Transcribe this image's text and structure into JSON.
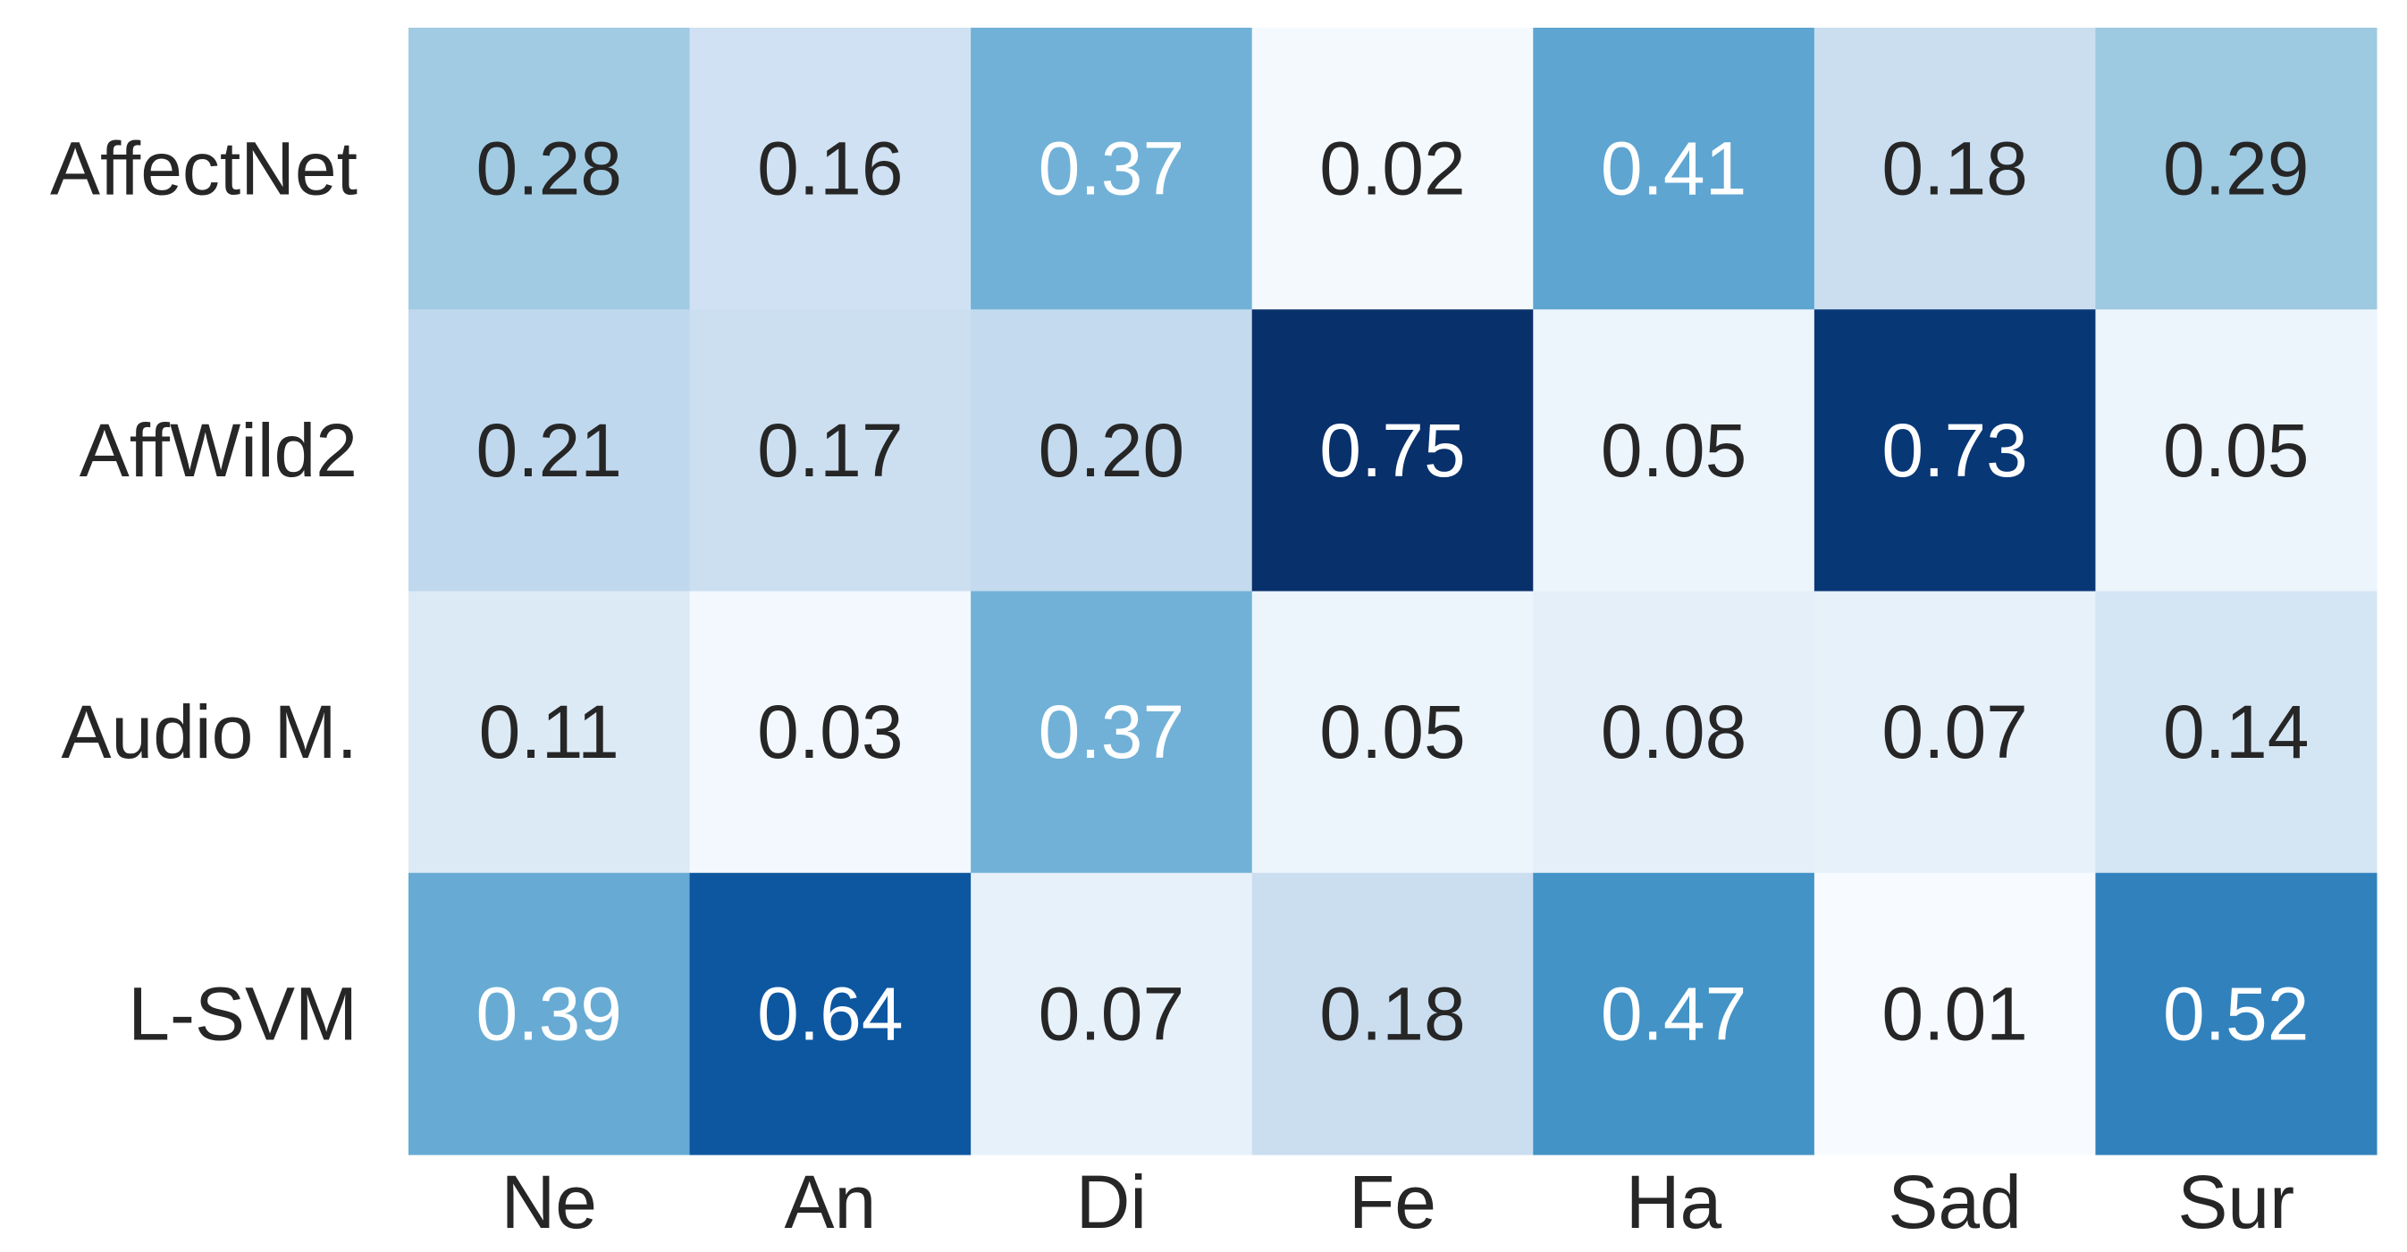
{
  "chart_data": {
    "type": "heatmap",
    "rows": [
      "AffectNet",
      "AffWild2",
      "Audio M.",
      "L-SVM"
    ],
    "columns": [
      "Ne",
      "An",
      "Di",
      "Fe",
      "Ha",
      "Sad",
      "Sur"
    ],
    "values": [
      [
        0.28,
        0.16,
        0.37,
        0.02,
        0.41,
        0.18,
        0.29
      ],
      [
        0.21,
        0.17,
        0.2,
        0.75,
        0.05,
        0.73,
        0.05
      ],
      [
        0.11,
        0.03,
        0.37,
        0.05,
        0.08,
        0.07,
        0.14
      ],
      [
        0.39,
        0.64,
        0.07,
        0.18,
        0.47,
        0.01,
        0.52
      ]
    ],
    "value_labels": [
      [
        "0.28",
        "0.16",
        "0.37",
        "0.02",
        "0.41",
        "0.18",
        "0.29"
      ],
      [
        "0.21",
        "0.17",
        "0.20",
        "0.75",
        "0.05",
        "0.73",
        "0.05"
      ],
      [
        "0.11",
        "0.03",
        "0.37",
        "0.05",
        "0.08",
        "0.07",
        "0.14"
      ],
      [
        "0.39",
        "0.64",
        "0.07",
        "0.18",
        "0.47",
        "0.01",
        "0.52"
      ]
    ],
    "colormap": "Blues"
  }
}
